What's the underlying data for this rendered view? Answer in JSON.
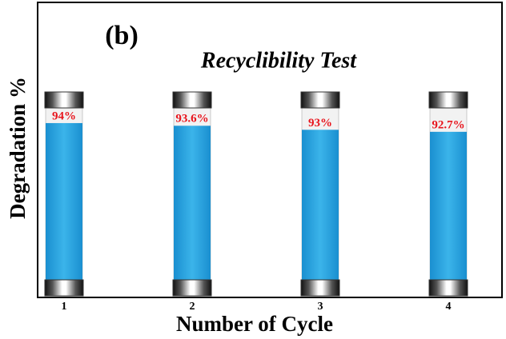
{
  "chart_data": {
    "type": "bar",
    "title": "Recyclibility Test",
    "annotation": "(b)",
    "xlabel": "Number of Cycle",
    "ylabel": "Degradation %",
    "categories": [
      "1",
      "2",
      "3",
      "4"
    ],
    "values": [
      94,
      93.6,
      93,
      92.7
    ],
    "value_labels": [
      "94%",
      "93.6%",
      "93%",
      "92.7%"
    ],
    "color": "#29a8e0",
    "ylim": [
      68,
      112
    ]
  }
}
